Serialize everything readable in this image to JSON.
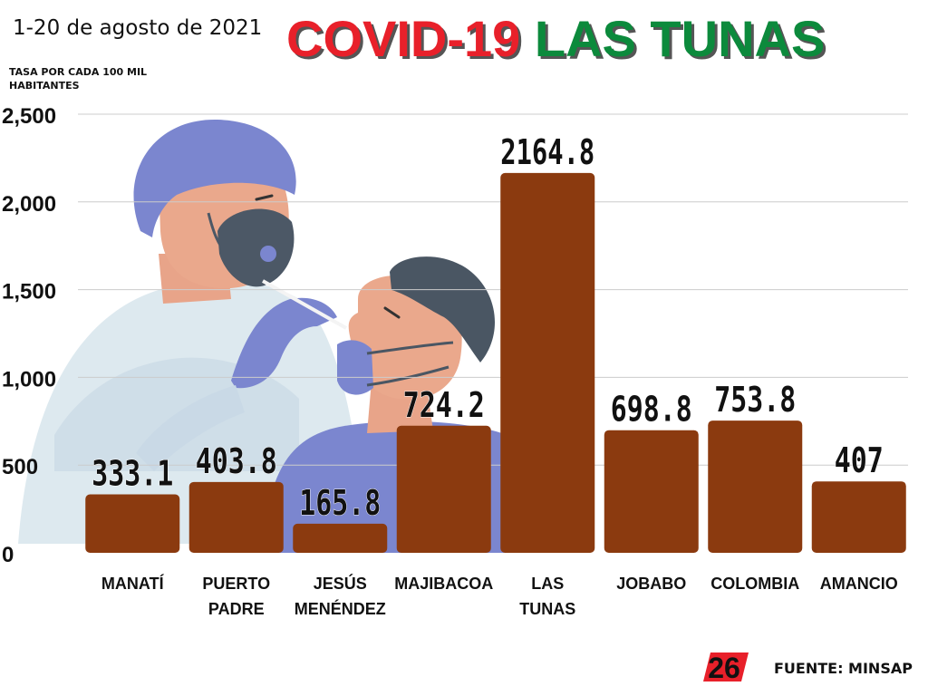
{
  "header": {
    "date_range": "1-20 de agosto de 2021",
    "title_part1": "COVID-19",
    "title_part2": "LAS TUNAS"
  },
  "colors": {
    "bar": "#8b3a0f",
    "title_red": "#e8202a",
    "title_green": "#0c8a3c",
    "gridline": "#cccccc"
  },
  "footer": {
    "source": "FUENTE: MINSAP",
    "logo_text": "26"
  },
  "chart_data": {
    "type": "bar",
    "ylabel": "TASA POR CADA 100 MIL HABITANTES",
    "xlabel": "",
    "categories": [
      "MANATÍ",
      "PUERTO PADRE",
      "JESÚS MENÉNDEZ",
      "MAJIBACOA",
      "LAS TUNAS",
      "JOBABO",
      "COLOMBIA",
      "AMANCIO"
    ],
    "category_lines": [
      [
        "MANATÍ"
      ],
      [
        "PUERTO",
        "PADRE"
      ],
      [
        "JESÚS",
        "MENÉNDEZ"
      ],
      [
        "MAJIBACOA"
      ],
      [
        "LAS",
        "TUNAS"
      ],
      [
        "JOBABO"
      ],
      [
        "COLOMBIA"
      ],
      [
        "AMANCIO"
      ]
    ],
    "values": [
      333.1,
      403.8,
      165.8,
      724.2,
      2164.8,
      698.8,
      753.8,
      407
    ],
    "value_labels": [
      "333.1",
      "403.8",
      "165.8",
      "724.2",
      "2164.8",
      "698.8",
      "753.8",
      "407"
    ],
    "ylim": [
      0,
      2500
    ],
    "yticks": [
      0,
      500,
      1000,
      1500,
      2000,
      2500
    ],
    "ytick_labels": [
      "0",
      "500",
      "1,000",
      "1,500",
      "2,000",
      "2,500"
    ],
    "grid": true
  }
}
